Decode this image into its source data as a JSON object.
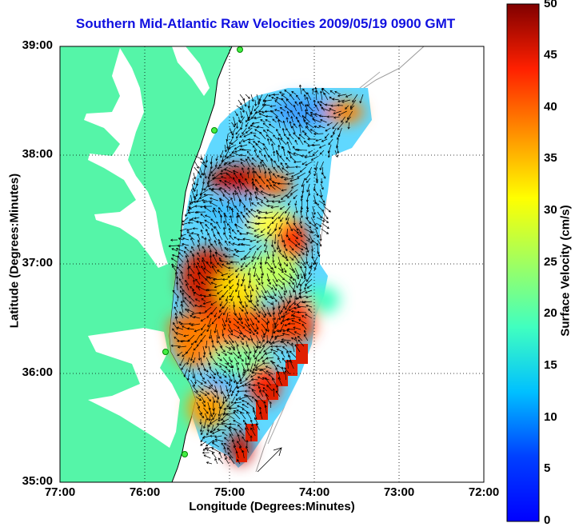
{
  "title": "Southern Mid-Atlantic Raw Velocities 2009/05/19 0900 GMT",
  "xlabel": "Longitude (Degrees:Minutes)",
  "ylabel": "Latitude (Degrees:Minutes)",
  "colorbar_label": "Surface Velocity (cm/s)",
  "x_ticks": [
    "77:00",
    "76:00",
    "75:00",
    "74:00",
    "73:00",
    "72:00"
  ],
  "y_ticks": [
    "39:00",
    "38:00",
    "37:00",
    "36:00",
    "35:00"
  ],
  "colorbar_ticks": [
    "0",
    "5",
    "10",
    "15",
    "20",
    "25",
    "30",
    "35",
    "40",
    "45",
    "50"
  ],
  "colors": {
    "land": "#55f5a8",
    "title": "#1010e0",
    "grid": "#000000",
    "arrows": "#000000",
    "colormap": "jet"
  },
  "chart_data": {
    "type": "heatmap",
    "map_type": "surface current velocity field with vector arrows",
    "lon_range": [
      -77.0,
      -72.0
    ],
    "lat_range": [
      35.0,
      39.0
    ],
    "value_range": [
      0,
      50
    ],
    "units": "cm/s",
    "grid": true,
    "colorbar": "right"
  }
}
